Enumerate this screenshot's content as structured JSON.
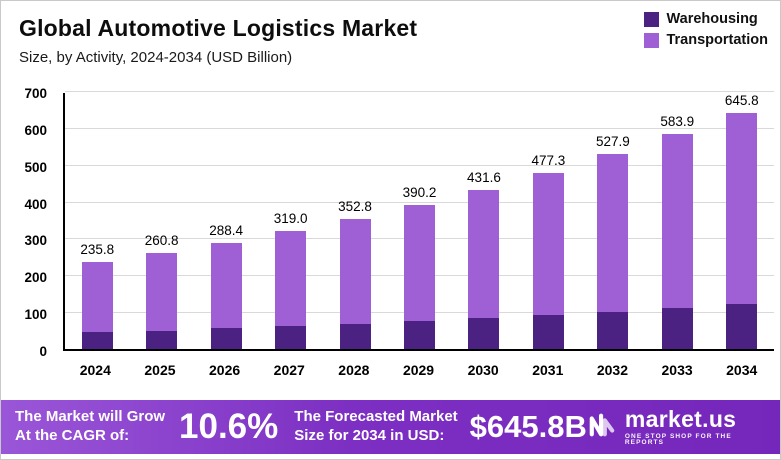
{
  "chart_data": {
    "type": "bar",
    "stacked": true,
    "title": "Global Automotive Logistics Market",
    "subtitle": "Size, by Activity, 2024-2034 (USD Billion)",
    "categories": [
      "2024",
      "2025",
      "2026",
      "2027",
      "2028",
      "2029",
      "2030",
      "2031",
      "2032",
      "2033",
      "2034"
    ],
    "totals": [
      235.8,
      260.8,
      288.4,
      319.0,
      352.8,
      390.2,
      431.6,
      477.3,
      527.9,
      583.9,
      645.8
    ],
    "series": [
      {
        "name": "Warehousing",
        "color": "#4b2182",
        "values": [
          45.0,
          50.0,
          56.0,
          62.0,
          68.0,
          76.0,
          84.0,
          92.0,
          101.0,
          111.0,
          123.0
        ]
      },
      {
        "name": "Transportation",
        "color": "#9e60d4",
        "values": [
          190.8,
          210.8,
          232.4,
          257.0,
          284.8,
          314.2,
          347.6,
          385.3,
          426.9,
          472.9,
          522.8
        ]
      }
    ],
    "ylim": [
      0,
      700
    ],
    "yticks": [
      0,
      100,
      200,
      300,
      400,
      500,
      600,
      700
    ],
    "grid": "horizontal",
    "legend_position": "top-right"
  },
  "banner": {
    "left_line1": "The Market will Grow",
    "left_line2": "At the CAGR of:",
    "cagr": "10.6%",
    "mid_line1": "The Forecasted Market",
    "mid_line2": "Size for 2034 in USD:",
    "forecast": "$645.8B",
    "brand": "market.us",
    "tagline": "ONE STOP SHOP FOR THE REPORTS"
  }
}
